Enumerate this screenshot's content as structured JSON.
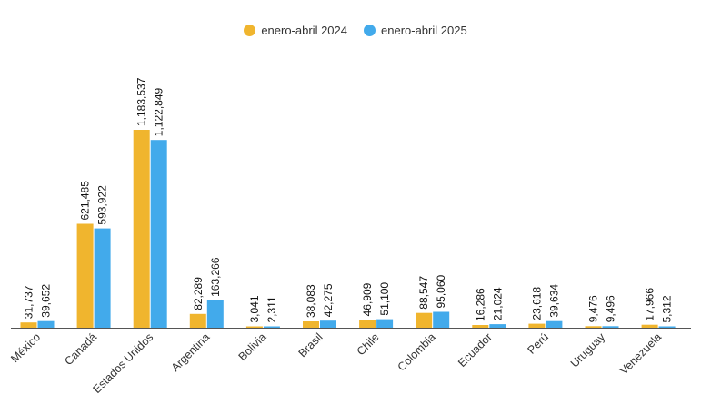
{
  "chart_data": {
    "type": "bar",
    "title": "",
    "xlabel": "",
    "ylabel": "",
    "categories": [
      "México",
      "Canadá",
      "Estados Unidos",
      "Argentina",
      "Bolivia",
      "Brasil",
      "Chile",
      "Colombia",
      "Ecuador",
      "Perú",
      "Uruguay",
      "Venezuela"
    ],
    "series": [
      {
        "name": "enero-abril 2024",
        "color": "#F0B52E",
        "values": [
          31737,
          621485,
          1183537,
          82289,
          3041,
          38083,
          46909,
          88547,
          16286,
          23618,
          9476,
          17966
        ],
        "labels": [
          "31,737",
          "621,485",
          "1,183,537",
          "82,289",
          "3,041",
          "38,083",
          "46,909",
          "88,547",
          "16,286",
          "23,618",
          "9,476",
          "17,966"
        ]
      },
      {
        "name": "enero-abril 2025",
        "color": "#42AAEB",
        "values": [
          39652,
          593922,
          1122849,
          163266,
          2311,
          42275,
          51100,
          95060,
          21024,
          39634,
          9496,
          5312
        ],
        "labels": [
          "39,652",
          "593,922",
          "1,122,849",
          "163,266",
          "2,311",
          "42,275",
          "51,100",
          "95,060",
          "21,024",
          "39,634",
          "9,496",
          "5,312"
        ]
      }
    ],
    "ylim": [
      0,
      1183537
    ],
    "grid": false,
    "legend_position": "top-center"
  }
}
